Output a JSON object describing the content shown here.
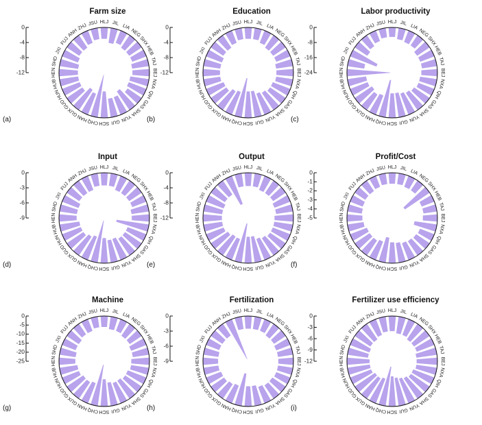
{
  "figure": {
    "bar_color": "#b8a3ec",
    "provinces": [
      "HLJ",
      "JIL",
      "LIA",
      "NEG",
      "SHX",
      "HEB",
      "TAJ",
      "BEJ",
      "NXA",
      "QIH",
      "GAS",
      "SHA",
      "YUN",
      "GUI",
      "SCH",
      "CHQ",
      "HAN",
      "GUX",
      "GUD",
      "HUN",
      "HUB",
      "HEN",
      "SHD",
      "JXI",
      "FUJ",
      "ANH",
      "ZHJ",
      "JSU"
    ]
  },
  "chart_data": [
    {
      "type": "radial-bar",
      "panel": "(a)",
      "title": "Farm size",
      "ylim": [
        -12,
        0
      ],
      "ticks": [
        "0",
        "-4",
        "-8",
        "-12"
      ],
      "values": [
        -3,
        -4,
        -3.5,
        -4,
        -4,
        -4,
        -4.5,
        -4.5,
        -5,
        -5,
        -4.5,
        -6,
        -5,
        -5,
        -7,
        -11.5,
        -6,
        -6.5,
        -5,
        -5,
        -5,
        -5,
        -5,
        -4.5,
        -4,
        -4,
        -3.5,
        -3
      ]
    },
    {
      "type": "radial-bar",
      "panel": "(b)",
      "title": "Education",
      "ylim": [
        -12,
        0
      ],
      "ticks": [
        "0",
        "-4",
        "-8",
        "-12"
      ],
      "values": [
        -3,
        -3,
        -3.5,
        -4,
        -4,
        -4,
        -4.5,
        -4.5,
        -4.5,
        -5,
        -5,
        -5.5,
        -6,
        -7,
        -7,
        -10.5,
        -6.5,
        -6,
        -5,
        -5,
        -4.5,
        -4.5,
        -4.5,
        -4.5,
        -4,
        -4,
        -3.5,
        -3
      ]
    },
    {
      "type": "radial-bar",
      "panel": "(c)",
      "title": "Labor productivity",
      "ylim": [
        -24,
        0
      ],
      "ticks": [
        "0",
        "-8",
        "-16",
        "-24"
      ],
      "values": [
        -5,
        -6,
        -6.5,
        -6.5,
        -8,
        -8,
        -8,
        -8.5,
        -9,
        -9,
        -10,
        -11,
        -12,
        -13,
        -13,
        -20,
        -11,
        -10,
        -11,
        -10,
        -10,
        -23,
        -9,
        -15,
        -8,
        -7,
        -6,
        -5
      ]
    },
    {
      "type": "radial-bar",
      "panel": "(d)",
      "title": "Input",
      "ylim": [
        -9,
        0
      ],
      "ticks": [
        "0",
        "-3",
        "-6",
        "-9"
      ],
      "values": [
        -2.5,
        -2.5,
        -3,
        -3,
        -3,
        -3,
        -3.5,
        -3.5,
        -6.5,
        -4,
        -4,
        -4,
        -4.5,
        -4.5,
        -5,
        -8.5,
        -5,
        -4.5,
        -4,
        -4,
        -4,
        -3.5,
        -3.5,
        -3.5,
        -3,
        -3,
        -3,
        -2.5
      ]
    },
    {
      "type": "radial-bar",
      "panel": "(e)",
      "title": "Output",
      "ylim": [
        -12,
        0
      ],
      "ticks": [
        "0",
        "-4",
        "-8",
        "-12"
      ],
      "values": [
        -3.5,
        -3.5,
        -4,
        -4,
        -4,
        -4.5,
        -4.5,
        -5,
        -5,
        -5,
        -5,
        -5.5,
        -6,
        -7,
        -7,
        -10.5,
        -6,
        -6,
        -5.5,
        -5,
        -5,
        -5,
        -5,
        -5,
        -4.5,
        -4.5,
        -8,
        -3.5
      ]
    },
    {
      "type": "radial-bar",
      "panel": "(f)",
      "title": "Profit/Cost",
      "ylim": [
        -5,
        0
      ],
      "ticks": [
        "0",
        "-1",
        "-2",
        "-3",
        "-4",
        "-5"
      ],
      "values": [
        -1.2,
        -1.2,
        -1.3,
        -1.3,
        -3.3,
        -1.5,
        -1.5,
        -1.6,
        -2.5,
        -1.7,
        -1.8,
        -1.9,
        -2,
        -2.2,
        -2.3,
        -2.8,
        -2.2,
        -2,
        -2,
        -2,
        -1.8,
        -1.7,
        -1.6,
        -1.5,
        -1.4,
        -1.4,
        -1.3,
        -1.2
      ]
    },
    {
      "type": "radial-bar",
      "panel": "(g)",
      "title": "Machine",
      "ylim": [
        -25,
        0
      ],
      "ticks": [
        "0",
        "-5",
        "-10",
        "-15",
        "-20",
        "-25"
      ],
      "values": [
        -6,
        -7,
        -7,
        -8,
        -8,
        -9,
        -9,
        -10,
        -10,
        -11,
        -11,
        -12,
        -12,
        -13,
        -15,
        -23,
        -12,
        -11,
        -11,
        -10,
        -10,
        -9,
        -9,
        -8,
        -8,
        -7,
        -7,
        -6
      ]
    },
    {
      "type": "radial-bar",
      "panel": "(h)",
      "title": "Fertilization",
      "ylim": [
        -9,
        0
      ],
      "ticks": [
        "0",
        "-3",
        "-6",
        "-9"
      ],
      "values": [
        -2.5,
        -2.5,
        -2.5,
        -2.8,
        -2.8,
        -3,
        -3,
        -3,
        -3,
        -3,
        -3.2,
        -3.2,
        -3.5,
        -4,
        -4,
        -6.5,
        -3.8,
        -3.5,
        -3.2,
        -3.2,
        -3,
        -3,
        -3,
        -2.8,
        -2.8,
        -2.8,
        -8.5,
        -2.5
      ]
    },
    {
      "type": "radial-bar",
      "panel": "(i)",
      "title": "Fertilizer use efficiency",
      "ylim": [
        -12,
        0
      ],
      "ticks": [
        "0",
        "-3",
        "-6",
        "-9",
        "-12"
      ],
      "values": [
        -4,
        -4.5,
        -4.5,
        -5,
        -5,
        -5,
        -5.5,
        -5.5,
        -5.5,
        -6,
        -6,
        -6.5,
        -7,
        -7.5,
        -8,
        -10.5,
        -7,
        -6.5,
        -6.5,
        -6,
        -6,
        -6,
        -5.5,
        -5.5,
        -5,
        -5,
        -4.5,
        -4
      ]
    }
  ]
}
